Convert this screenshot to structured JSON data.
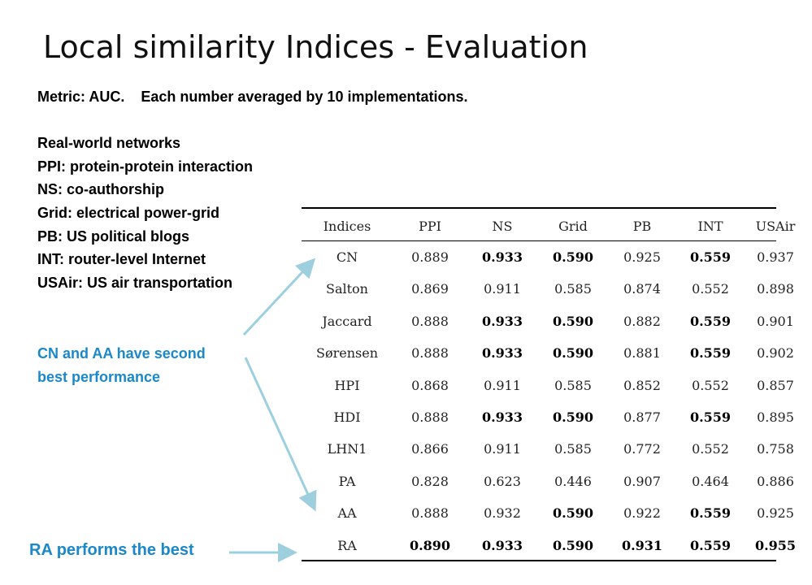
{
  "title": "Local similarity Indices - Evaluation",
  "notes": {
    "metric": "Metric: AUC.    Each number averaged by 10 implementations.",
    "heading": "Real-world networks",
    "lines": [
      "PPI: protein-protein interaction",
      "NS: co-authorship",
      "Grid: electrical power-grid",
      "PB: US political blogs",
      "INT: router-level Internet",
      "USAir: US air transportation"
    ]
  },
  "callout": {
    "line1": "CN and AA have second",
    "line2": "best performance"
  },
  "ra_label": "RA performs the best",
  "accent_color": "#1a88c9",
  "arrow_color": "#9ecfde",
  "table": {
    "columns": [
      "Indices",
      "PPI",
      "NS",
      "Grid",
      "PB",
      "INT",
      "USAir"
    ],
    "rows": [
      {
        "index": "CN",
        "values": [
          "0.889",
          "0.933",
          "0.590",
          "0.925",
          "0.559",
          "0.937"
        ],
        "bold": [
          false,
          true,
          true,
          false,
          true,
          false
        ]
      },
      {
        "index": "Salton",
        "values": [
          "0.869",
          "0.911",
          "0.585",
          "0.874",
          "0.552",
          "0.898"
        ],
        "bold": [
          false,
          false,
          false,
          false,
          false,
          false
        ]
      },
      {
        "index": "Jaccard",
        "values": [
          "0.888",
          "0.933",
          "0.590",
          "0.882",
          "0.559",
          "0.901"
        ],
        "bold": [
          false,
          true,
          true,
          false,
          true,
          false
        ]
      },
      {
        "index": "Sørensen",
        "values": [
          "0.888",
          "0.933",
          "0.590",
          "0.881",
          "0.559",
          "0.902"
        ],
        "bold": [
          false,
          true,
          true,
          false,
          true,
          false
        ]
      },
      {
        "index": "HPI",
        "values": [
          "0.868",
          "0.911",
          "0.585",
          "0.852",
          "0.552",
          "0.857"
        ],
        "bold": [
          false,
          false,
          false,
          false,
          false,
          false
        ]
      },
      {
        "index": "HDI",
        "values": [
          "0.888",
          "0.933",
          "0.590",
          "0.877",
          "0.559",
          "0.895"
        ],
        "bold": [
          false,
          true,
          true,
          false,
          true,
          false
        ]
      },
      {
        "index": "LHN1",
        "values": [
          "0.866",
          "0.911",
          "0.585",
          "0.772",
          "0.552",
          "0.758"
        ],
        "bold": [
          false,
          false,
          false,
          false,
          false,
          false
        ]
      },
      {
        "index": "PA",
        "values": [
          "0.828",
          "0.623",
          "0.446",
          "0.907",
          "0.464",
          "0.886"
        ],
        "bold": [
          false,
          false,
          false,
          false,
          false,
          false
        ]
      },
      {
        "index": "AA",
        "values": [
          "0.888",
          "0.932",
          "0.590",
          "0.922",
          "0.559",
          "0.925"
        ],
        "bold": [
          false,
          false,
          true,
          false,
          true,
          false
        ]
      },
      {
        "index": "RA",
        "values": [
          "0.890",
          "0.933",
          "0.590",
          "0.931",
          "0.559",
          "0.955"
        ],
        "bold": [
          true,
          true,
          true,
          true,
          true,
          true
        ]
      }
    ]
  }
}
